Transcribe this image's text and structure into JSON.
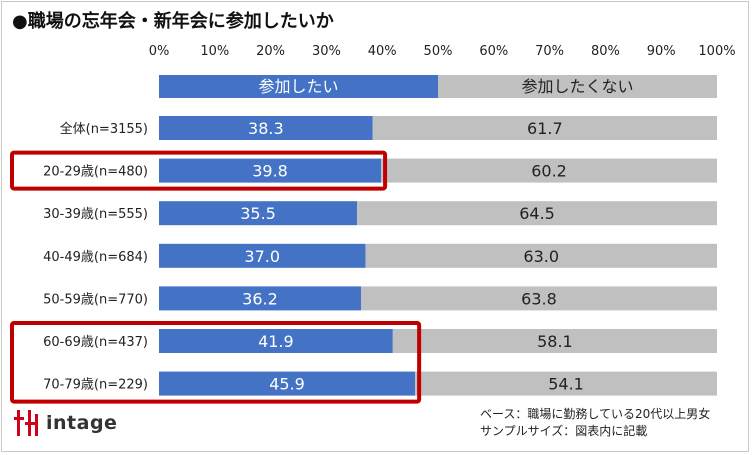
{
  "title": "●職場の忘年会・新年会に参加したいか",
  "chart_data": {
    "type": "bar",
    "orientation": "horizontal-stacked-100",
    "title": "●職場の忘年会・新年会に参加したいか",
    "x_ticks": [
      "0%",
      "10%",
      "20%",
      "30%",
      "40%",
      "50%",
      "60%",
      "70%",
      "80%",
      "90%",
      "100%"
    ],
    "xlim": [
      0,
      100
    ],
    "legend_bar": {
      "series": [
        {
          "name": "参加したい",
          "value": 50
        },
        {
          "name": "参加したくない",
          "value": 50
        }
      ]
    },
    "categories": [
      "全体(n=3155)",
      "20-29歳(n=480)",
      "30-39歳(n=555)",
      "40-49歳(n=684)",
      "50-59歳(n=770)",
      "60-69歳(n=437)",
      "70-79歳(n=229)"
    ],
    "series": [
      {
        "name": "参加したい",
        "values": [
          38.3,
          39.8,
          35.5,
          37.0,
          36.2,
          41.9,
          45.9
        ],
        "labels": [
          "38.3",
          "39.8",
          "35.5",
          "37.0",
          "36.2",
          "41.9",
          "45.9"
        ],
        "color": "#4472c4"
      },
      {
        "name": "参加したくない",
        "values": [
          61.7,
          60.2,
          64.5,
          63.0,
          63.8,
          58.1,
          54.1
        ],
        "labels": [
          "61.7",
          "60.2",
          "64.5",
          "63.0",
          "63.8",
          "58.1",
          "54.1"
        ],
        "color": "#c0c0c0"
      }
    ],
    "highlighted_groups": [
      [
        "20-29歳(n=480)"
      ],
      [
        "60-69歳(n=437)",
        "70-79歳(n=229)"
      ]
    ],
    "highlight_color": "#c00000"
  },
  "footer": {
    "logo_text": "intage",
    "note_base": "ベース：職場に勤務している20代以上男女",
    "note_sample": "サンプルサイズ：図表内に記載"
  }
}
